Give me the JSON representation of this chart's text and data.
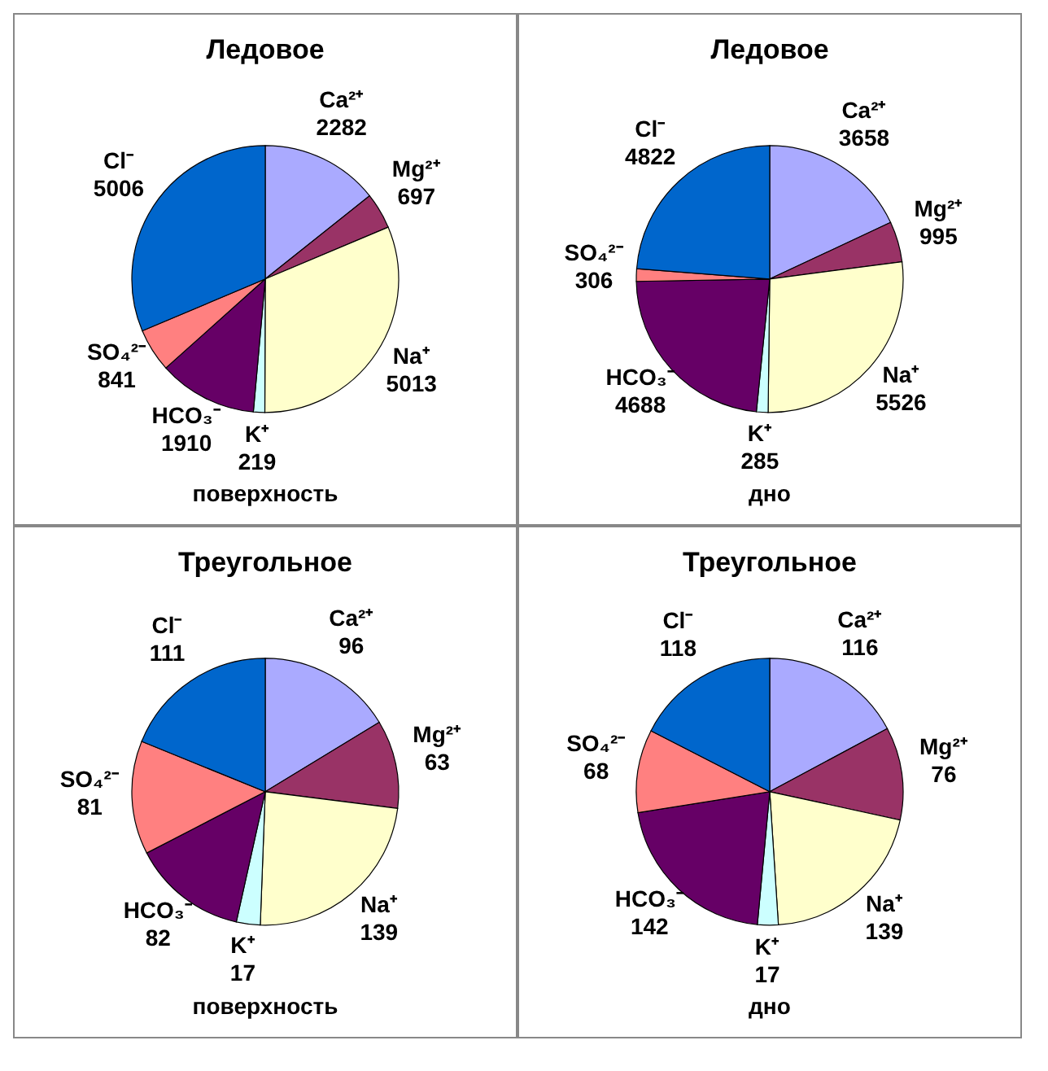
{
  "chart_data": [
    {
      "type": "pie",
      "title": "Ледовое",
      "xlabel": "поверхность",
      "categories": [
        "Ca²⁺",
        "Mg²⁺",
        "Na⁺",
        "K⁺",
        "HCO₃⁻",
        "SO₄²⁻",
        "Cl⁻"
      ],
      "values": [
        2282,
        697,
        5013,
        219,
        1910,
        841,
        5006
      ],
      "colors": [
        "#aaaaff",
        "#993366",
        "#ffffcc",
        "#ccffff",
        "#660066",
        "#ff8080",
        "#0066cc"
      ],
      "data_labels": true
    },
    {
      "type": "pie",
      "title": "Ледовое",
      "xlabel": "дно",
      "categories": [
        "Ca²⁺",
        "Mg²⁺",
        "Na⁺",
        "K⁺",
        "HCO₃⁻",
        "SO₄²⁻",
        "Cl⁻"
      ],
      "values": [
        3658,
        995,
        5526,
        285,
        4688,
        306,
        4822
      ],
      "colors": [
        "#aaaaff",
        "#993366",
        "#ffffcc",
        "#ccffff",
        "#660066",
        "#ff8080",
        "#0066cc"
      ],
      "data_labels": true
    },
    {
      "type": "pie",
      "title": "Треугольное",
      "xlabel": "поверхность",
      "categories": [
        "Ca²⁺",
        "Mg²⁺",
        "Na⁺",
        "K⁺",
        "HCO₃⁻",
        "SO₄²⁻",
        "Cl⁻"
      ],
      "values": [
        96,
        63,
        139,
        17,
        82,
        81,
        111
      ],
      "colors": [
        "#aaaaff",
        "#993366",
        "#ffffcc",
        "#ccffff",
        "#660066",
        "#ff8080",
        "#0066cc"
      ],
      "data_labels": true
    },
    {
      "type": "pie",
      "title": "Треугольное",
      "xlabel": "дно",
      "categories": [
        "Ca²⁺",
        "Mg²⁺",
        "Na⁺",
        "K⁺",
        "HCO₃⁻",
        "SO₄²⁻",
        "Cl⁻"
      ],
      "values": [
        116,
        76,
        139,
        17,
        142,
        68,
        118
      ],
      "colors": [
        "#aaaaff",
        "#993366",
        "#ffffcc",
        "#ccffff",
        "#660066",
        "#ff8080",
        "#0066cc"
      ],
      "data_labels": true
    }
  ]
}
